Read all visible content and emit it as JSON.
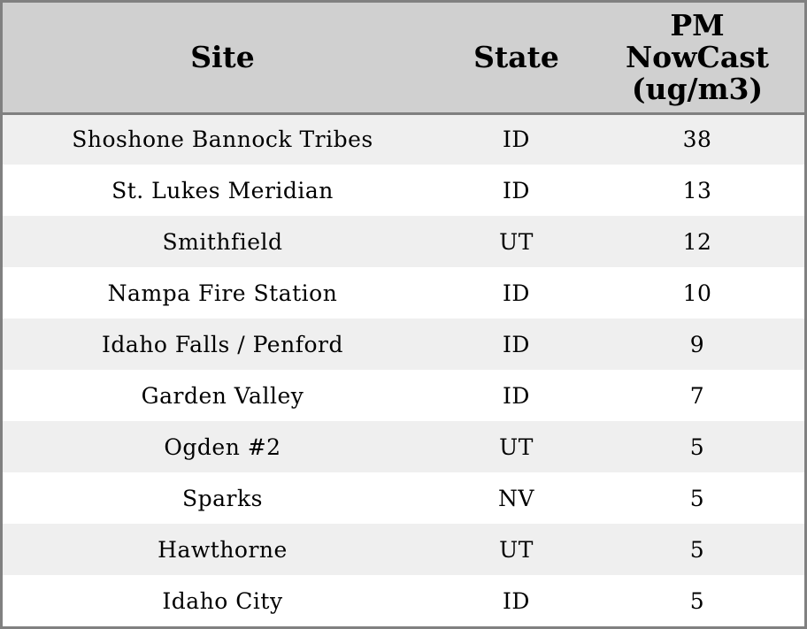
{
  "chart_data": {
    "type": "table",
    "columns": [
      "Site",
      "State",
      "PM NowCast (ug/m3)"
    ],
    "rows": [
      [
        "Shoshone Bannock Tribes",
        "ID",
        "38"
      ],
      [
        "St. Lukes Meridian",
        "ID",
        "13"
      ],
      [
        "Smithfield",
        "UT",
        "12"
      ],
      [
        "Nampa Fire Station",
        "ID",
        "10"
      ],
      [
        "Idaho Falls / Penford",
        "ID",
        "9"
      ],
      [
        "Garden Valley",
        "ID",
        "7"
      ],
      [
        "Ogden #2",
        "UT",
        "5"
      ],
      [
        "Sparks",
        "NV",
        "5"
      ],
      [
        "Hawthorne",
        "UT",
        "5"
      ],
      [
        "Idaho City",
        "ID",
        "5"
      ]
    ],
    "colors": {
      "header_bg": "#d0d0d0",
      "row_alt_bg": "#efefef",
      "border": "#808080"
    }
  }
}
